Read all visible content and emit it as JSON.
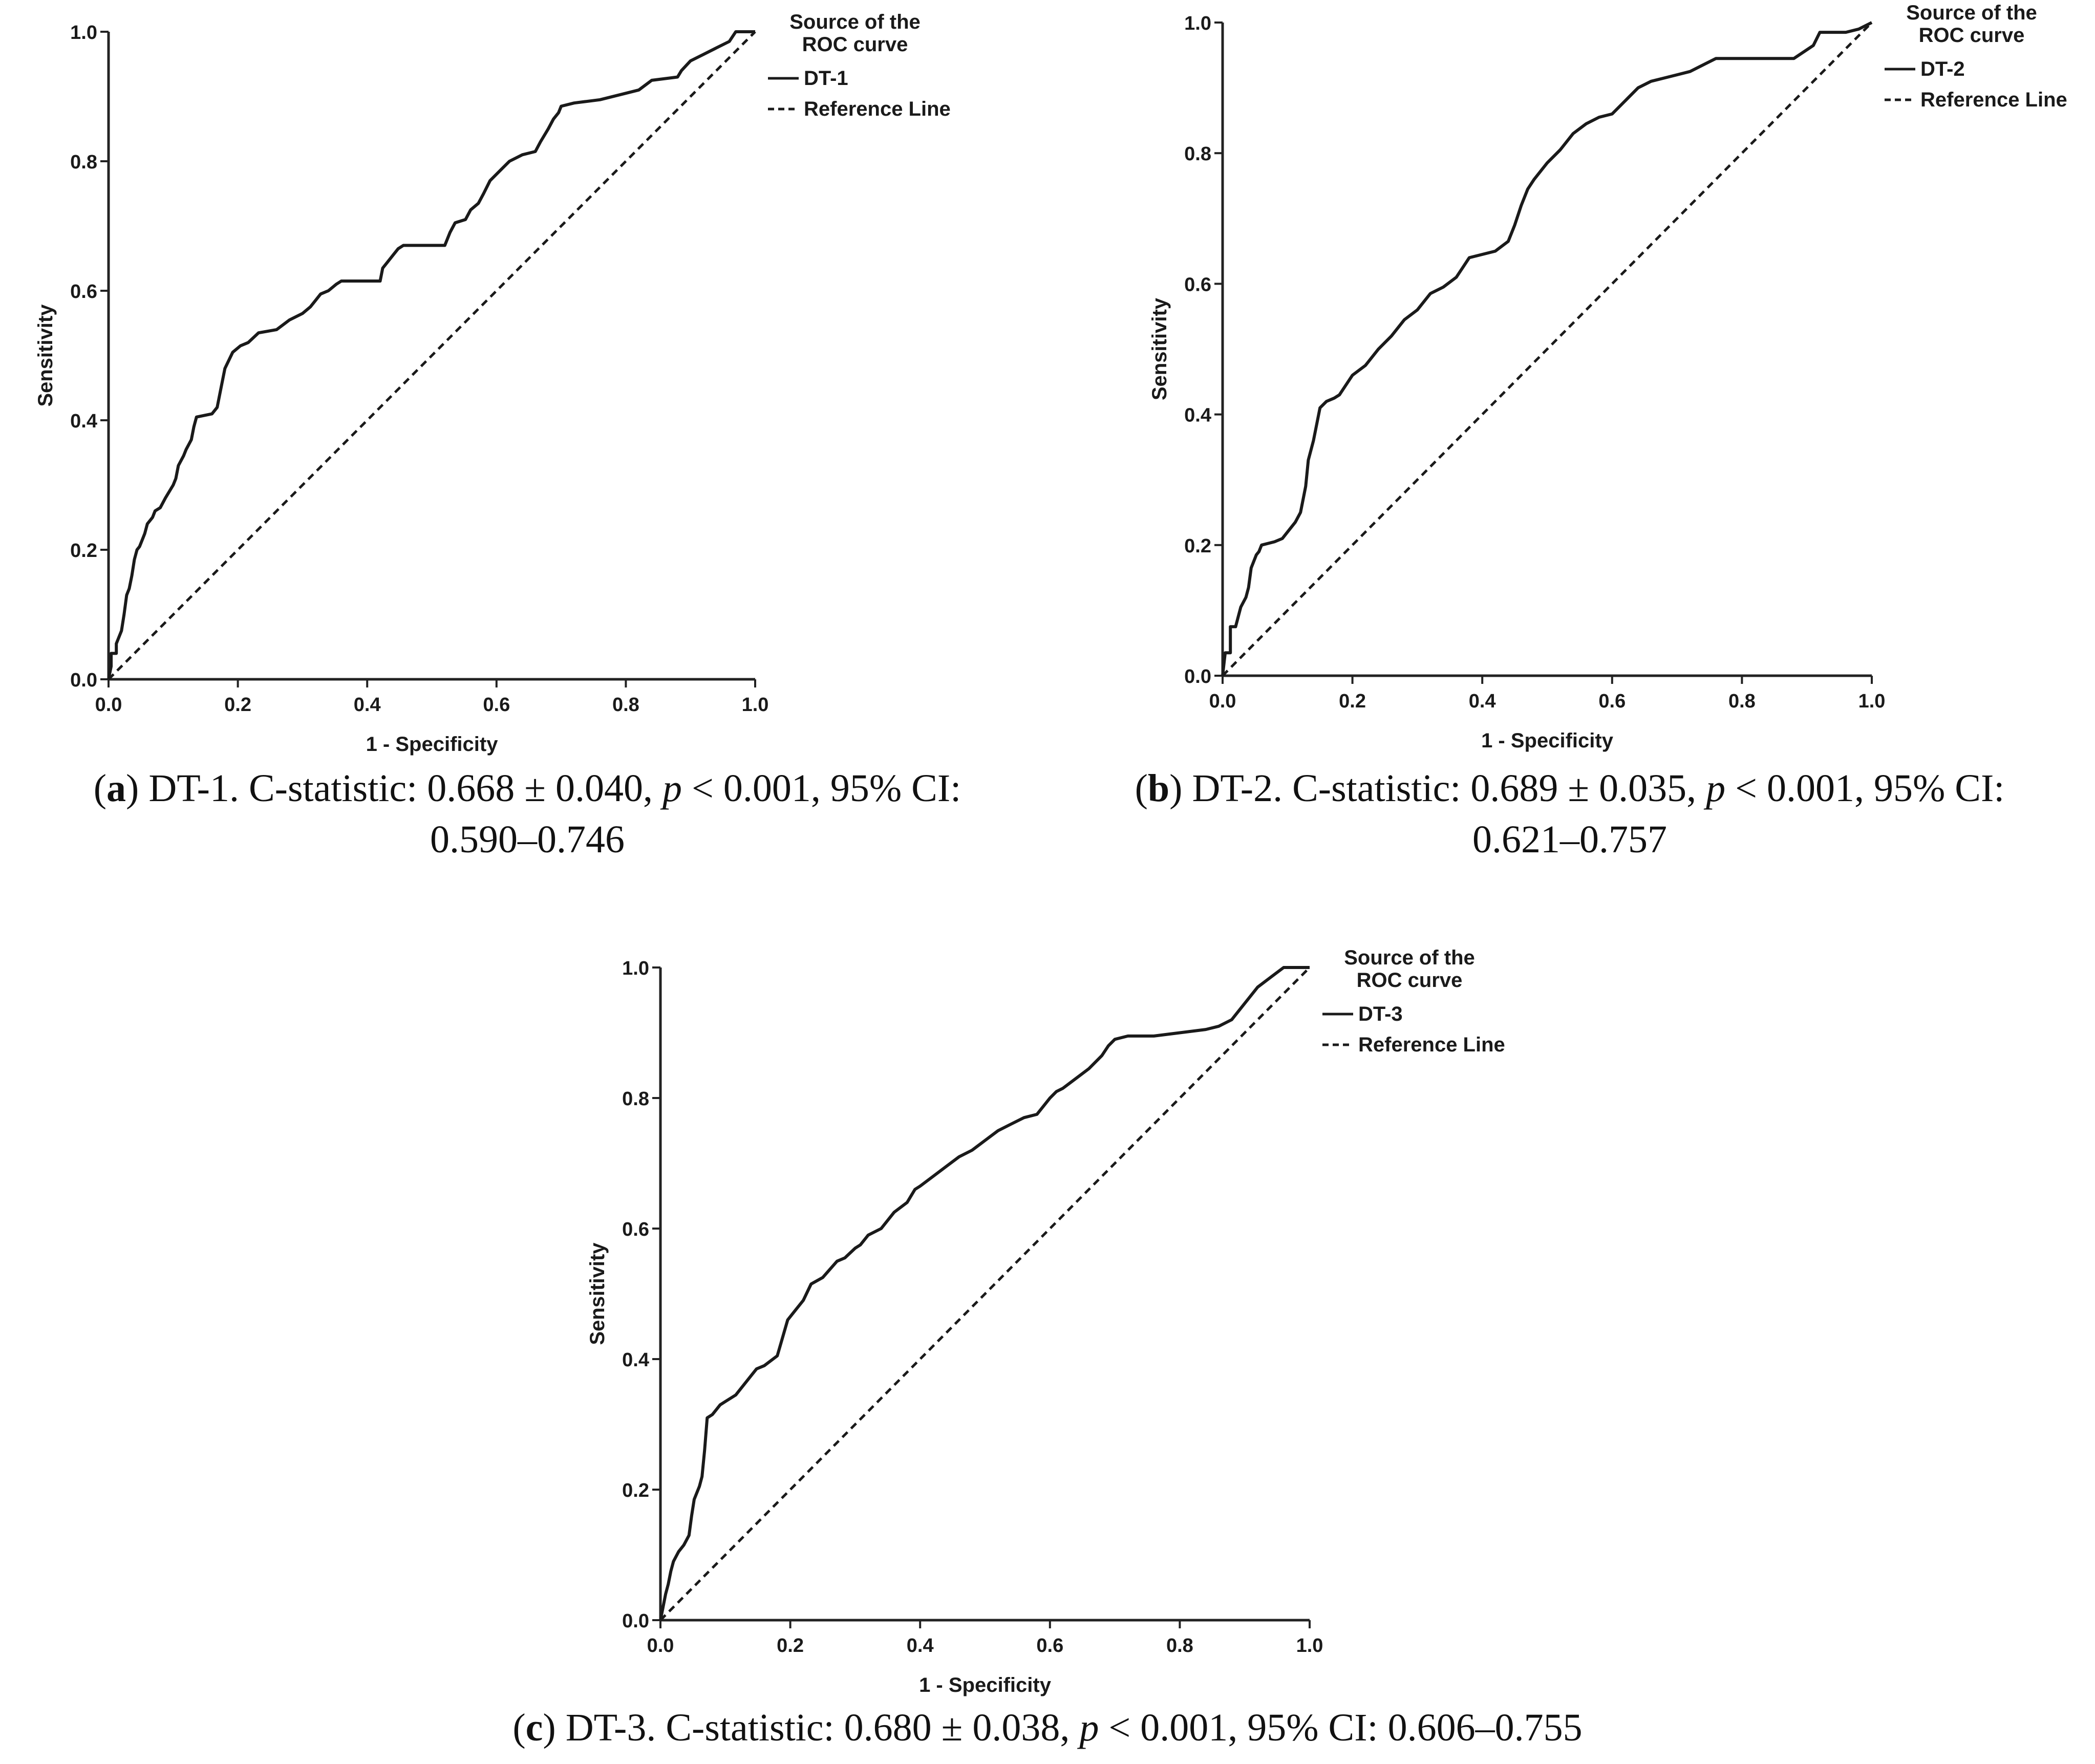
{
  "chart_data": [
    {
      "type": "line",
      "panel": "a",
      "xlabel": "1 - Specificity",
      "ylabel": "Sensitivity",
      "xlim": [
        0,
        1
      ],
      "ylim": [
        0,
        1
      ],
      "xticks": [
        "0.0",
        "0.2",
        "0.4",
        "0.6",
        "0.8",
        "1.0"
      ],
      "yticks": [
        "0.0",
        "0.2",
        "0.4",
        "0.6",
        "0.8",
        "1.0"
      ],
      "legend": {
        "title": "Source of the",
        "title2": "ROC curve",
        "position": "top-right"
      },
      "series": [
        {
          "name": "DT-1",
          "style": "solid",
          "x": [
            0,
            0.004,
            0.004,
            0.012,
            0.012,
            0.02,
            0.024,
            0.028,
            0.032,
            0.036,
            0.04,
            0.044,
            0.048,
            0.052,
            0.056,
            0.06,
            0.068,
            0.072,
            0.08,
            0.088,
            0.1,
            0.104,
            0.108,
            0.116,
            0.12,
            0.128,
            0.132,
            0.136,
            0.16,
            0.168,
            0.172,
            0.18,
            0.192,
            0.204,
            0.216,
            0.232,
            0.26,
            0.28,
            0.3,
            0.312,
            0.32,
            0.328,
            0.34,
            0.352,
            0.36,
            0.42,
            0.424,
            0.432,
            0.44,
            0.448,
            0.456,
            0.52,
            0.528,
            0.536,
            0.552,
            0.56,
            0.572,
            0.58,
            0.59,
            0.6,
            0.61,
            0.62,
            0.64,
            0.66,
            0.668,
            0.68,
            0.688,
            0.696,
            0.7,
            0.72,
            0.76,
            0.8,
            0.82,
            0.84,
            0.88,
            0.886,
            0.9,
            0.92,
            0.94,
            0.96,
            0.97,
            1.0
          ],
          "y": [
            0,
            0.02,
            0.04,
            0.04,
            0.055,
            0.075,
            0.1,
            0.13,
            0.14,
            0.16,
            0.185,
            0.2,
            0.205,
            0.215,
            0.225,
            0.24,
            0.25,
            0.26,
            0.265,
            0.28,
            0.3,
            0.31,
            0.33,
            0.345,
            0.355,
            0.37,
            0.39,
            0.405,
            0.41,
            0.42,
            0.44,
            0.48,
            0.505,
            0.515,
            0.52,
            0.535,
            0.54,
            0.555,
            0.565,
            0.575,
            0.585,
            0.595,
            0.6,
            0.61,
            0.615,
            0.615,
            0.635,
            0.645,
            0.655,
            0.665,
            0.67,
            0.67,
            0.69,
            0.705,
            0.71,
            0.725,
            0.735,
            0.75,
            0.77,
            0.78,
            0.79,
            0.8,
            0.81,
            0.815,
            0.83,
            0.85,
            0.865,
            0.875,
            0.885,
            0.89,
            0.895,
            0.905,
            0.91,
            0.925,
            0.93,
            0.94,
            0.955,
            0.965,
            0.975,
            0.985,
            1.0,
            1.0
          ]
        },
        {
          "name": "Reference Line",
          "style": "dashed",
          "x": [
            0,
            1
          ],
          "y": [
            0,
            1
          ]
        }
      ]
    },
    {
      "type": "line",
      "panel": "b",
      "xlabel": "1 - Specificity",
      "ylabel": "Sensitivity",
      "xlim": [
        0,
        1
      ],
      "ylim": [
        0,
        1
      ],
      "xticks": [
        "0.0",
        "0.2",
        "0.4",
        "0.6",
        "0.8",
        "1.0"
      ],
      "yticks": [
        "0.0",
        "0.2",
        "0.4",
        "0.6",
        "0.8",
        "1.0"
      ],
      "legend": {
        "title": "Source of the",
        "title2": "ROC curve",
        "position": "top-right"
      },
      "series": [
        {
          "name": "DT-2",
          "style": "solid",
          "x": [
            0,
            0.004,
            0.012,
            0.012,
            0.02,
            0.028,
            0.036,
            0.04,
            0.044,
            0.052,
            0.056,
            0.06,
            0.08,
            0.092,
            0.1,
            0.108,
            0.112,
            0.12,
            0.128,
            0.132,
            0.14,
            0.15,
            0.16,
            0.172,
            0.18,
            0.2,
            0.22,
            0.24,
            0.26,
            0.28,
            0.3,
            0.32,
            0.34,
            0.36,
            0.37,
            0.38,
            0.4,
            0.42,
            0.44,
            0.45,
            0.46,
            0.47,
            0.48,
            0.5,
            0.52,
            0.54,
            0.56,
            0.58,
            0.6,
            0.62,
            0.64,
            0.66,
            0.68,
            0.7,
            0.72,
            0.74,
            0.76,
            0.8,
            0.84,
            0.88,
            0.91,
            0.92,
            0.96,
            0.98,
            1.0
          ],
          "y": [
            0,
            0.035,
            0.035,
            0.075,
            0.075,
            0.105,
            0.12,
            0.135,
            0.165,
            0.185,
            0.19,
            0.2,
            0.205,
            0.21,
            0.22,
            0.23,
            0.235,
            0.25,
            0.29,
            0.33,
            0.36,
            0.41,
            0.42,
            0.425,
            0.43,
            0.46,
            0.475,
            0.5,
            0.52,
            0.545,
            0.56,
            0.585,
            0.595,
            0.61,
            0.625,
            0.64,
            0.645,
            0.65,
            0.665,
            0.69,
            0.72,
            0.745,
            0.76,
            0.785,
            0.805,
            0.83,
            0.845,
            0.855,
            0.86,
            0.88,
            0.9,
            0.91,
            0.915,
            0.92,
            0.925,
            0.935,
            0.945,
            0.945,
            0.945,
            0.945,
            0.965,
            0.985,
            0.985,
            0.99,
            1.0
          ]
        },
        {
          "name": "Reference Line",
          "style": "dashed",
          "x": [
            0,
            1
          ],
          "y": [
            0,
            1
          ]
        }
      ]
    },
    {
      "type": "line",
      "panel": "c",
      "xlabel": "1 - Specificity",
      "ylabel": "Sensitivity",
      "xlim": [
        0,
        1
      ],
      "ylim": [
        0,
        1
      ],
      "xticks": [
        "0.0",
        "0.2",
        "0.4",
        "0.6",
        "0.8",
        "1.0"
      ],
      "yticks": [
        "0.0",
        "0.2",
        "0.4",
        "0.6",
        "0.8",
        "1.0"
      ],
      "legend": {
        "title": "Source of the",
        "title2": "ROC curve",
        "position": "top-right"
      },
      "series": [
        {
          "name": "DT-3",
          "style": "solid",
          "x": [
            0,
            0.004,
            0.008,
            0.012,
            0.016,
            0.02,
            0.028,
            0.036,
            0.044,
            0.048,
            0.052,
            0.06,
            0.064,
            0.068,
            0.072,
            0.08,
            0.092,
            0.1,
            0.116,
            0.124,
            0.14,
            0.148,
            0.16,
            0.18,
            0.196,
            0.208,
            0.22,
            0.232,
            0.25,
            0.272,
            0.284,
            0.3,
            0.308,
            0.32,
            0.34,
            0.36,
            0.38,
            0.392,
            0.4,
            0.42,
            0.44,
            0.46,
            0.48,
            0.5,
            0.52,
            0.54,
            0.56,
            0.58,
            0.6,
            0.61,
            0.62,
            0.64,
            0.66,
            0.68,
            0.69,
            0.7,
            0.72,
            0.76,
            0.8,
            0.84,
            0.86,
            0.88,
            0.9,
            0.92,
            0.94,
            0.96,
            1.0
          ],
          "y": [
            0,
            0.02,
            0.04,
            0.055,
            0.075,
            0.09,
            0.105,
            0.115,
            0.13,
            0.16,
            0.185,
            0.205,
            0.22,
            0.26,
            0.31,
            0.315,
            0.33,
            0.335,
            0.345,
            0.355,
            0.375,
            0.385,
            0.39,
            0.405,
            0.46,
            0.475,
            0.49,
            0.515,
            0.525,
            0.55,
            0.555,
            0.57,
            0.575,
            0.59,
            0.6,
            0.625,
            0.64,
            0.66,
            0.665,
            0.68,
            0.695,
            0.71,
            0.72,
            0.735,
            0.75,
            0.76,
            0.77,
            0.775,
            0.8,
            0.81,
            0.815,
            0.83,
            0.845,
            0.865,
            0.88,
            0.89,
            0.895,
            0.895,
            0.9,
            0.905,
            0.91,
            0.92,
            0.945,
            0.97,
            0.985,
            1.0,
            1.0
          ]
        },
        {
          "name": "Reference Line",
          "style": "dashed",
          "x": [
            0,
            1
          ],
          "y": [
            0,
            1
          ]
        }
      ]
    }
  ],
  "captions": {
    "a": {
      "label": "a",
      "pre": "(",
      "post": ") DT-1. C-statistic: 0.668 ± 0.040, ",
      "p": "p",
      "rest": " < 0.001, 95% CI:",
      "line2": "0.590–0.746"
    },
    "b": {
      "label": "b",
      "pre": "(",
      "post": ") DT-2. C-statistic: 0.689 ± 0.035, ",
      "p": "p",
      "rest": " < 0.001, 95% CI:",
      "line2": "0.621–0.757"
    },
    "c": {
      "label": "c",
      "pre": "(",
      "post": ") DT-3. C-statistic: 0.680 ± 0.038, ",
      "p": "p",
      "rest": " < 0.001, 95% CI: 0.606–0.755"
    }
  }
}
